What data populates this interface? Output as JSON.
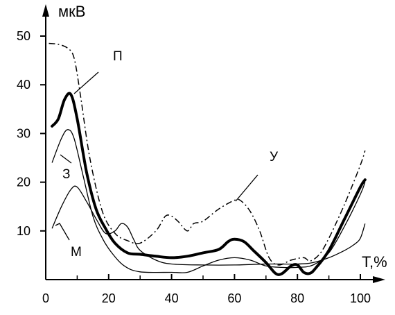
{
  "chart_data": {
    "type": "line",
    "ylabel": "мкВ",
    "xlabel": "T,%",
    "xlim": [
      0,
      100
    ],
    "ylim": [
      0,
      50
    ],
    "x_ticks": [
      0,
      20,
      40,
      60,
      80,
      100
    ],
    "y_ticks": [
      10,
      20,
      30,
      40,
      50
    ],
    "grid": false,
    "series": [
      {
        "name": "П",
        "style": "thick-solid",
        "points": [
          [
            2,
            31.5
          ],
          [
            4,
            33
          ],
          [
            6,
            37
          ],
          [
            8,
            38
          ],
          [
            10,
            33
          ],
          [
            13,
            22
          ],
          [
            16,
            14.5
          ],
          [
            19,
            10.5
          ],
          [
            22,
            7.5
          ],
          [
            26,
            5.5
          ],
          [
            30,
            5.2
          ],
          [
            35,
            4.8
          ],
          [
            40,
            4.5
          ],
          [
            45,
            4.8
          ],
          [
            50,
            5.5
          ],
          [
            55,
            6.2
          ],
          [
            58,
            7.8
          ],
          [
            60,
            8.3
          ],
          [
            63,
            7.8
          ],
          [
            66,
            6
          ],
          [
            70,
            3.5
          ],
          [
            73,
            1.3
          ],
          [
            75,
            1.2
          ],
          [
            78,
            2.8
          ],
          [
            80,
            3
          ],
          [
            82,
            1.5
          ],
          [
            84,
            1.3
          ],
          [
            86,
            2.5
          ],
          [
            90,
            6
          ],
          [
            95,
            12.5
          ],
          [
            100,
            19
          ],
          [
            101.5,
            20.5
          ]
        ]
      },
      {
        "name": "З",
        "style": "thin-solid",
        "points": [
          [
            2,
            24
          ],
          [
            5,
            29
          ],
          [
            7,
            30.8
          ],
          [
            9,
            29
          ],
          [
            12,
            21
          ],
          [
            15,
            13
          ],
          [
            18,
            8.5
          ],
          [
            21,
            5.5
          ],
          [
            25,
            2.8
          ],
          [
            30,
            1.6
          ],
          [
            40,
            1.5
          ],
          [
            45,
            1.5
          ],
          [
            50,
            2.8
          ],
          [
            55,
            4
          ],
          [
            60,
            4.5
          ],
          [
            65,
            4
          ],
          [
            70,
            2.8
          ],
          [
            75,
            2.5
          ],
          [
            80,
            2.5
          ],
          [
            85,
            3
          ],
          [
            90,
            5.5
          ],
          [
            95,
            11
          ],
          [
            100,
            17.5
          ],
          [
            101.5,
            20
          ]
        ]
      },
      {
        "name": "М",
        "style": "thin-solid",
        "points": [
          [
            2,
            10.5
          ],
          [
            5,
            15
          ],
          [
            8,
            18.5
          ],
          [
            10,
            19
          ],
          [
            13,
            16
          ],
          [
            16,
            12.5
          ],
          [
            19,
            9.5
          ],
          [
            22,
            10
          ],
          [
            24,
            11.5
          ],
          [
            26,
            10.8
          ],
          [
            28,
            8.2
          ],
          [
            30,
            6
          ],
          [
            35,
            4
          ],
          [
            40,
            3.2
          ],
          [
            50,
            3
          ],
          [
            60,
            3
          ],
          [
            70,
            3.2
          ],
          [
            80,
            3.2
          ],
          [
            85,
            3.5
          ],
          [
            90,
            4.5
          ],
          [
            95,
            6
          ],
          [
            98,
            7.2
          ],
          [
            100,
            8.5
          ],
          [
            101.5,
            11.5
          ]
        ]
      },
      {
        "name": "У",
        "style": "dash-dot",
        "points": [
          [
            1,
            48.5
          ],
          [
            4,
            48.3
          ],
          [
            7,
            47.5
          ],
          [
            9,
            45.5
          ],
          [
            11,
            38
          ],
          [
            14,
            25
          ],
          [
            18,
            14
          ],
          [
            22,
            9.5
          ],
          [
            26,
            8
          ],
          [
            30,
            7.5
          ],
          [
            35,
            10
          ],
          [
            38,
            13
          ],
          [
            40,
            13
          ],
          [
            42,
            12
          ],
          [
            45,
            10
          ],
          [
            47,
            11.5
          ],
          [
            50,
            12
          ],
          [
            55,
            14.5
          ],
          [
            60,
            16.3
          ],
          [
            62,
            16.2
          ],
          [
            65,
            14
          ],
          [
            68,
            10
          ],
          [
            71,
            4.5
          ],
          [
            74,
            3
          ],
          [
            78,
            4
          ],
          [
            82,
            4.5
          ],
          [
            84,
            3.8
          ],
          [
            87,
            5.2
          ],
          [
            90,
            8.5
          ],
          [
            95,
            15.5
          ],
          [
            100,
            23.5
          ],
          [
            101.5,
            26.5
          ]
        ]
      }
    ]
  }
}
